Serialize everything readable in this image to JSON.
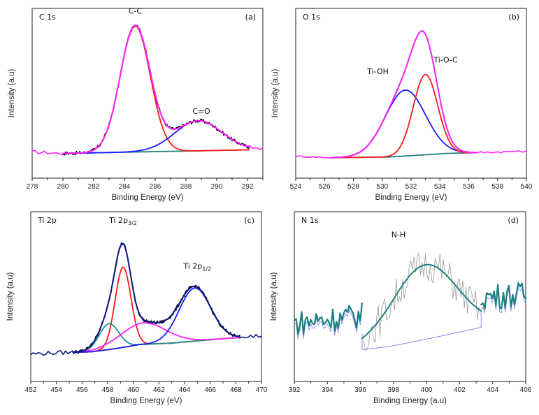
{
  "figure": {
    "type": "multi-panel XPS spectra"
  },
  "chart_data": [
    {
      "panel": "a",
      "type": "line",
      "title": "C 1s",
      "panel_label": "(a)",
      "xlabel": "Binding Energy (eV)",
      "ylabel": "Intensity (a.u)",
      "xlim": [
        278,
        293
      ],
      "ylim": [
        0,
        1
      ],
      "xticks": [
        278,
        280,
        282,
        284,
        286,
        288,
        290,
        292
      ],
      "minor_step": 1,
      "annotations": [
        {
          "text": "C-C",
          "x": 284.7,
          "y": 1.06
        },
        {
          "text": "C=O",
          "x": 289.0,
          "y": 0.36
        }
      ],
      "fit_range": [
        280.0,
        292.1
      ],
      "baseline": {
        "x": [
          280.0,
          292.1
        ],
        "y": [
          0.085,
          0.11
        ],
        "color": "#1f8080"
      },
      "peaks": [
        {
          "name": "C-C",
          "center": 284.7,
          "height": 0.88,
          "fwhm": 2.3,
          "color": "#ff1a1a"
        },
        {
          "name": "C=O",
          "center": 288.8,
          "height": 0.21,
          "fwhm": 3.6,
          "color": "#1a1aff"
        }
      ],
      "envelope_color": "#ff22ff",
      "raw_color": "#000000",
      "raw_noise": 0.012,
      "outer_trace": {
        "x_left": [
          278,
          280
        ],
        "x_right": [
          292.1,
          293
        ],
        "y_left": 0.095,
        "y_right": 0.12,
        "noise": 0.012,
        "color": "#ff22ff"
      }
    },
    {
      "panel": "b",
      "type": "line",
      "title": "O 1s",
      "panel_label": "(b)",
      "xlabel": "Binding Energy (eV)",
      "ylabel": "Intensity (a.u)",
      "xlim": [
        524,
        540
      ],
      "ylim": [
        0,
        1
      ],
      "xticks": [
        524,
        526,
        528,
        530,
        532,
        534,
        536,
        538,
        540
      ],
      "minor_step": 1,
      "annotations": [
        {
          "text": "Ti-OH",
          "x": 529.7,
          "y": 0.64
        },
        {
          "text": "Ti-O-C",
          "x": 534.4,
          "y": 0.72
        }
      ],
      "fit_range": [
        526.5,
        536.5
      ],
      "baseline": {
        "x": [
          526.5,
          530.5,
          534.5,
          536.5
        ],
        "y": [
          0.055,
          0.06,
          0.085,
          0.09
        ],
        "color": "#1f8080"
      },
      "peaks": [
        {
          "name": "Ti-OH",
          "center": 531.6,
          "height": 0.46,
          "fwhm": 3.3,
          "color": "#1a1aff"
        },
        {
          "name": "Ti-O-C",
          "center": 533.0,
          "height": 0.56,
          "fwhm": 2.0,
          "color": "#ff1a1a"
        }
      ],
      "envelope_color": "#ff22ff",
      "raw_color": "#000000",
      "raw_noise": 0.004,
      "outer_trace": {
        "x_left": [
          524,
          526.5
        ],
        "x_right": [
          536.5,
          540
        ],
        "y_left": 0.065,
        "y_right": 0.1,
        "noise": 0.006,
        "color": "#ff22ff"
      }
    },
    {
      "panel": "c",
      "type": "line",
      "title": "Ti 2p",
      "panel_label": "(c)",
      "xlabel": "Binding Energy (eV)",
      "ylabel": "Intensity (a.u)",
      "xlim": [
        452,
        470
      ],
      "ylim": [
        0,
        1
      ],
      "xticks": [
        452,
        454,
        456,
        458,
        460,
        462,
        464,
        466,
        468,
        470
      ],
      "minor_step": 1,
      "annotations": [
        {
          "text": "Ti 2p",
          "sub": "3/2",
          "x": 459.2,
          "y": 1.02
        },
        {
          "text": "Ti 2p",
          "sub": "1/2",
          "x": 465.0,
          "y": 0.7
        }
      ],
      "fit_range": [
        455.3,
        468.3
      ],
      "baseline": {
        "x": [
          455.3,
          456.8,
          458.5,
          460.5,
          463.0,
          465.5,
          468.3
        ],
        "y": [
          0.115,
          0.12,
          0.14,
          0.17,
          0.18,
          0.2,
          0.22
        ],
        "color": "#808020"
      },
      "peaks": [
        {
          "name": "Ti 2p3/2 main",
          "center": 459.2,
          "height": 0.56,
          "fwhm": 1.45,
          "color": "#ff1a1a"
        },
        {
          "name": "Ti 2p3/2 shoulder",
          "center": 458.1,
          "height": 0.18,
          "fwhm": 1.8,
          "color": "#1f9090"
        },
        {
          "name": "satellite",
          "center": 460.8,
          "height": 0.15,
          "fwhm": 4.2,
          "color": "#ff22ff"
        },
        {
          "name": "Ti 2p1/2",
          "center": 464.8,
          "height": 0.37,
          "fwhm": 2.9,
          "color": "#1a1aff"
        }
      ],
      "envelope_color": "#0d1a80",
      "raw_color": "#000000",
      "raw_noise": 0.012,
      "outer_trace": {
        "x_left": [
          452,
          455.3
        ],
        "x_right": [
          468.3,
          470
        ],
        "y_left": 0.105,
        "y_right": 0.23,
        "noise": 0.014,
        "color": "#0d1a80"
      }
    },
    {
      "panel": "d",
      "type": "line",
      "title": "N 1s",
      "panel_label": "(d)",
      "xlabel": "Binding Energy (a.u)",
      "ylabel": "Intensity (a.u)",
      "xlim": [
        392,
        406
      ],
      "ylim": [
        0,
        1
      ],
      "xticks": [
        392,
        394,
        396,
        398,
        400,
        402,
        404,
        406
      ],
      "minor_step": 1,
      "annotations": [
        {
          "text": "N-H",
          "x": 398.3,
          "y": 0.92
        }
      ],
      "fit_range": [
        396.1,
        403.3
      ],
      "baseline": {
        "x": [
          396.1,
          397.7,
          400.5,
          403.3
        ],
        "y": [
          0.135,
          0.155,
          0.22,
          0.29
        ],
        "color": "#7a7aff"
      },
      "peaks": [
        {
          "name": "N-H",
          "center": 399.9,
          "height": 0.52,
          "fwhm": 4.6,
          "color": "#1f8080"
        }
      ],
      "envelope_color": "#1f8080",
      "raw_color": "#999999",
      "raw_noise": 0.12,
      "outer_trace": {
        "x_left": [
          392,
          396.1
        ],
        "x_right": [
          403.3,
          406
        ],
        "y_left": 0.32,
        "y_right": 0.52,
        "noise": 0.09,
        "color": "#1f8080"
      }
    }
  ]
}
